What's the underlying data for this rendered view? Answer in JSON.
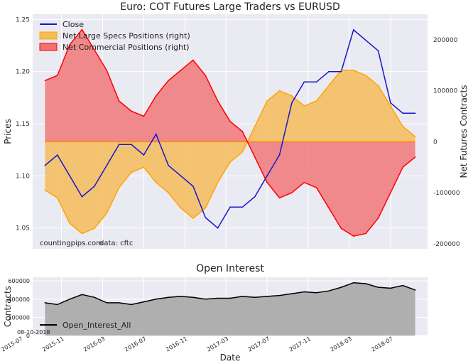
{
  "chart_data": [
    {
      "type": "line",
      "title": "Euro: COT Futures Large Traders vs EURUSD",
      "ylabel": "Prices",
      "y2label": "Net Futures Contracts",
      "ylim": [
        1.03,
        1.255
      ],
      "y2lim": [
        -210000,
        250000
      ],
      "yticks": [
        "1.05",
        "1.10",
        "1.15",
        "1.20",
        "1.25"
      ],
      "y2ticks": [
        "-200000",
        "-100000",
        "0",
        "100000",
        "200000"
      ],
      "grid": true,
      "legend_position": "top-left",
      "watermark": "countingpips.com",
      "source_text": "data: cftc",
      "colors": {
        "close": "#1515d0",
        "specs_line": "#ffa500",
        "specs_fill": "#f5bc5c",
        "comm_line": "#ff0000",
        "comm_fill": "#f07070",
        "zero_line": "#ff8c00"
      },
      "x": [
        2015.7,
        2015.8,
        2015.9,
        2016.0,
        2016.1,
        2016.2,
        2016.3,
        2016.4,
        2016.5,
        2016.6,
        2016.7,
        2016.8,
        2016.9,
        2017.0,
        2017.1,
        2017.2,
        2017.3,
        2017.4,
        2017.5,
        2017.6,
        2017.7,
        2017.8,
        2017.9,
        2018.0,
        2018.1,
        2018.2,
        2018.3,
        2018.4,
        2018.5,
        2018.6,
        2018.7
      ],
      "series": [
        {
          "name": "Close",
          "axis": "left",
          "values": [
            1.11,
            1.12,
            1.1,
            1.08,
            1.09,
            1.11,
            1.13,
            1.13,
            1.12,
            1.14,
            1.11,
            1.1,
            1.09,
            1.06,
            1.05,
            1.07,
            1.07,
            1.08,
            1.1,
            1.12,
            1.17,
            1.19,
            1.19,
            1.2,
            1.2,
            1.24,
            1.23,
            1.22,
            1.17,
            1.16,
            1.16
          ]
        },
        {
          "name": "Net Large Specs Positions (right)",
          "axis": "right",
          "values": [
            -95000,
            -110000,
            -160000,
            -180000,
            -170000,
            -140000,
            -90000,
            -60000,
            -50000,
            -80000,
            -100000,
            -130000,
            -150000,
            -130000,
            -80000,
            -40000,
            -20000,
            30000,
            80000,
            100000,
            90000,
            70000,
            80000,
            110000,
            140000,
            140000,
            130000,
            110000,
            70000,
            30000,
            10000
          ]
        },
        {
          "name": "Net Commercial Positions (right)",
          "axis": "right",
          "values": [
            120000,
            130000,
            190000,
            220000,
            180000,
            140000,
            80000,
            60000,
            50000,
            90000,
            120000,
            140000,
            160000,
            130000,
            80000,
            40000,
            20000,
            -30000,
            -80000,
            -110000,
            -100000,
            -80000,
            -90000,
            -130000,
            -170000,
            -185000,
            -180000,
            -150000,
            -100000,
            -50000,
            -30000
          ]
        }
      ]
    },
    {
      "type": "area",
      "title": "Open Interest",
      "ylabel": "Contracts",
      "xlabel": "Date",
      "ylim": [
        0,
        640000
      ],
      "yticks": [
        "0",
        "200000",
        "400000",
        "600000"
      ],
      "xticks": [
        "2015-07",
        "2015-11",
        "2016-03",
        "2016-07",
        "2016-11",
        "2017-03",
        "2017-07",
        "2017-11",
        "2018-03",
        "2018-07"
      ],
      "grid": true,
      "legend_position": "bottom-left",
      "date_stamp": "08-10-2018",
      "colors": {
        "line": "#000000",
        "fill": "#a9a9a9"
      },
      "x": [
        2015.7,
        2015.8,
        2015.9,
        2016.0,
        2016.1,
        2016.2,
        2016.3,
        2016.4,
        2016.5,
        2016.6,
        2016.7,
        2016.8,
        2016.9,
        2017.0,
        2017.1,
        2017.2,
        2017.3,
        2017.4,
        2017.5,
        2017.6,
        2017.7,
        2017.8,
        2017.9,
        2018.0,
        2018.1,
        2018.2,
        2018.3,
        2018.4,
        2018.5,
        2018.6,
        2018.7
      ],
      "series": [
        {
          "name": "Open_Interest_All",
          "values": [
            360000,
            340000,
            400000,
            450000,
            420000,
            360000,
            360000,
            340000,
            370000,
            400000,
            420000,
            430000,
            420000,
            400000,
            410000,
            410000,
            430000,
            420000,
            430000,
            440000,
            460000,
            480000,
            470000,
            490000,
            530000,
            580000,
            570000,
            530000,
            520000,
            550000,
            500000
          ]
        }
      ]
    }
  ]
}
